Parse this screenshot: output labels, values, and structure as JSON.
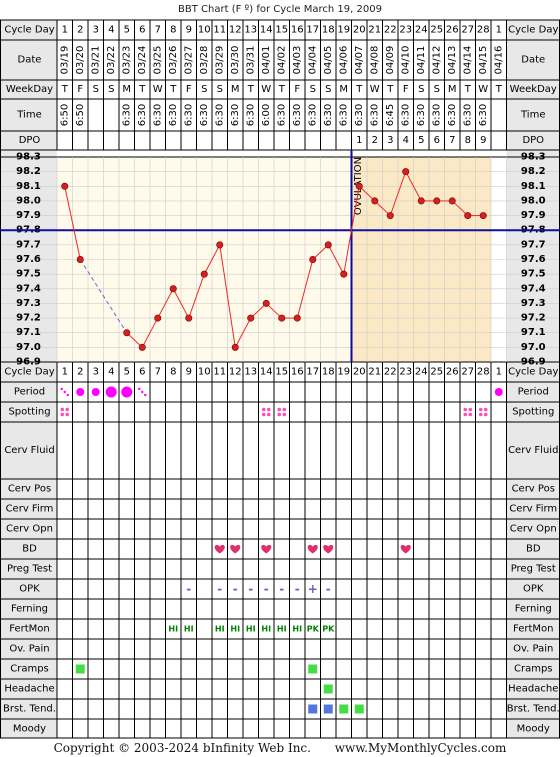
{
  "title": "BBT Chart (F º) for Cycle March 19, 2009",
  "footer": {
    "copyright": "Copyright © 2003-2024 bInfinity Web Inc.",
    "site": "www.MyMonthlyCycles.com"
  },
  "colors": {
    "grid": "#000000",
    "label_bg": "#e8e8e8",
    "pre_ovulation_bg": "#fffaea",
    "post_ovulation_bg": "#fbe9c6",
    "temp_line": "#f02828",
    "temp_point": "#d42020",
    "coverline": "#1010a0",
    "ovulation_line": "#0a0aa0",
    "period": "#ff00ff",
    "spotting": "#ff4fb7",
    "heart": "#e0306a",
    "opk": "#6060c8",
    "fertmon": "#008000",
    "symptom_green": "#44dd44",
    "symptom_blue": "#5577dd"
  },
  "labels": {
    "cycle_day": "Cycle Day",
    "date": "Date",
    "weekday": "WeekDay",
    "time": "Time",
    "dpo": "DPO",
    "period": "Period",
    "spotting": "Spotting",
    "cerv_fluid": "Cerv Fluid",
    "cerv_pos": "Cerv Pos",
    "cerv_firm": "Cerv Firm",
    "cerv_opn": "Cerv Opn",
    "bd": "BD",
    "preg_test": "Preg Test",
    "opk": "OPK",
    "ferning": "Ferning",
    "fertmon": "FertMon",
    "ov_pain": "Ov. Pain",
    "cramps": "Cramps",
    "headache": "Headache",
    "brst_tend": "Brst. Tend.",
    "moody": "Moody"
  },
  "ovulation_label": "OVULATION",
  "chart_data": {
    "type": "line",
    "ylim": [
      96.9,
      98.3
    ],
    "y_ticks": [
      "98.3",
      "98.2",
      "98.1",
      "98.0",
      "97.9",
      "97.8",
      "97.7",
      "97.6",
      "97.5",
      "97.4",
      "97.3",
      "97.2",
      "97.1",
      "97.0",
      "96.9"
    ],
    "coverline": 97.8,
    "ovulation_after_day": 19,
    "cycle_days": [
      "1",
      "2",
      "3",
      "4",
      "5",
      "6",
      "7",
      "8",
      "9",
      "10",
      "11",
      "12",
      "13",
      "14",
      "15",
      "16",
      "17",
      "18",
      "19",
      "20",
      "21",
      "22",
      "23",
      "24",
      "25",
      "26",
      "27",
      "28",
      "1"
    ],
    "dates": [
      "03/19",
      "03/20",
      "03/21",
      "03/22",
      "03/23",
      "03/24",
      "03/25",
      "03/26",
      "03/27",
      "03/28",
      "03/29",
      "03/30",
      "03/31",
      "04/01",
      "04/02",
      "04/03",
      "04/04",
      "04/05",
      "04/06",
      "04/07",
      "04/08",
      "04/09",
      "04/10",
      "04/11",
      "04/12",
      "04/13",
      "04/14",
      "04/15",
      "04/16"
    ],
    "weekdays": [
      "T",
      "F",
      "S",
      "S",
      "M",
      "T",
      "W",
      "T",
      "F",
      "S",
      "S",
      "M",
      "T",
      "W",
      "T",
      "F",
      "S",
      "S",
      "M",
      "T",
      "W",
      "T",
      "F",
      "S",
      "S",
      "M",
      "T",
      "W",
      "T"
    ],
    "times": [
      "6:50",
      "6:50",
      "",
      "",
      "6:30",
      "6:30",
      "6:30",
      "6:30",
      "6:30",
      "6:30",
      "6:30",
      "6:30",
      "6:30",
      "6:00",
      "6:30",
      "6:30",
      "6:30",
      "6:30",
      "6:30",
      "6:30",
      "6:30",
      "6:45",
      "6:30",
      "6:30",
      "6:30",
      "6:30",
      "6:30",
      "6:30",
      ""
    ],
    "dpo": [
      "",
      "",
      "",
      "",
      "",
      "",
      "",
      "",
      "",
      "",
      "",
      "",
      "",
      "",
      "",
      "",
      "",
      "",
      "",
      "1",
      "2",
      "3",
      "4",
      "5",
      "6",
      "7",
      "8",
      "9",
      ""
    ],
    "temps": [
      98.1,
      97.6,
      null,
      null,
      97.1,
      97.0,
      97.2,
      97.4,
      97.2,
      97.5,
      97.7,
      97.0,
      97.2,
      97.3,
      97.2,
      97.2,
      97.6,
      97.7,
      97.5,
      98.1,
      98.0,
      97.9,
      98.2,
      98.0,
      98.0,
      98.0,
      97.9,
      97.9,
      null
    ],
    "period": [
      "light",
      "heavy",
      "heavy",
      "veryheavy",
      "veryheavy",
      "light",
      "",
      "",
      "",
      "",
      "",
      "",
      "",
      "",
      "",
      "",
      "",
      "",
      "",
      "",
      "",
      "",
      "",
      "",
      "",
      "",
      "",
      "",
      "heavy"
    ],
    "spotting": [
      1,
      0,
      0,
      0,
      0,
      0,
      0,
      0,
      0,
      0,
      0,
      0,
      0,
      1,
      1,
      0,
      0,
      0,
      0,
      0,
      0,
      0,
      0,
      0,
      0,
      0,
      1,
      1,
      0
    ],
    "bd": [
      11,
      12,
      14,
      17,
      18,
      23
    ],
    "opk": [
      "",
      "",
      "",
      "",
      "",
      "",
      "",
      "",
      "-",
      "",
      "-",
      "-",
      "-",
      "-",
      "-",
      "-",
      "+",
      "-",
      "",
      "",
      "",
      "",
      "",
      "",
      "",
      "",
      "",
      "",
      ""
    ],
    "fertmon": [
      "",
      "",
      "",
      "",
      "",
      "",
      "",
      "HI",
      "HI",
      "",
      "HI",
      "HI",
      "HI",
      "HI",
      "HI",
      "HI",
      "PK",
      "PK",
      "",
      "",
      "",
      "",
      "",
      "",
      "",
      "",
      "",
      "",
      ""
    ],
    "cramps": {
      "2": "green",
      "17": "green"
    },
    "headache": {
      "18": "green"
    },
    "brst_tend": {
      "17": "blue",
      "18": "blue",
      "19": "green",
      "20": "green"
    }
  }
}
